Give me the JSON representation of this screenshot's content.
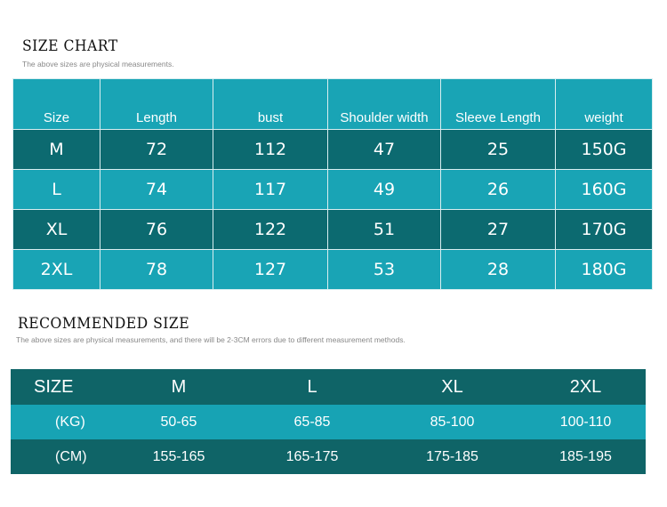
{
  "size_chart": {
    "title": "SIZE CHART",
    "subtitle": "The above sizes are physical measurements.",
    "headers": [
      "Size",
      "Length",
      "bust",
      "Shoulder width",
      "Sleeve Length",
      "weight"
    ],
    "rows": [
      [
        "M",
        "72",
        "112",
        "47",
        "25",
        "150G"
      ],
      [
        "L",
        "74",
        "117",
        "49",
        "26",
        "160G"
      ],
      [
        "XL",
        "76",
        "122",
        "51",
        "27",
        "170G"
      ],
      [
        "2XL",
        "78",
        "127",
        "53",
        "28",
        "180G"
      ]
    ]
  },
  "recommended": {
    "title": "RECOMMENDED SIZE",
    "subtitle": "The above sizes are physical measurements, and there will be 2-3CM errors due to different measurement methods.",
    "headers": [
      "SIZE",
      "M",
      "L",
      "XL",
      "2XL"
    ],
    "rows": [
      [
        "(KG)",
        "50-65",
        "65-85",
        "85-100",
        "100-110"
      ],
      [
        "(CM)",
        "155-165",
        "165-175",
        "175-185",
        "185-195"
      ]
    ]
  },
  "colors": {
    "teal_light": "#19a4b5",
    "teal_dark": "#0c6a70"
  }
}
